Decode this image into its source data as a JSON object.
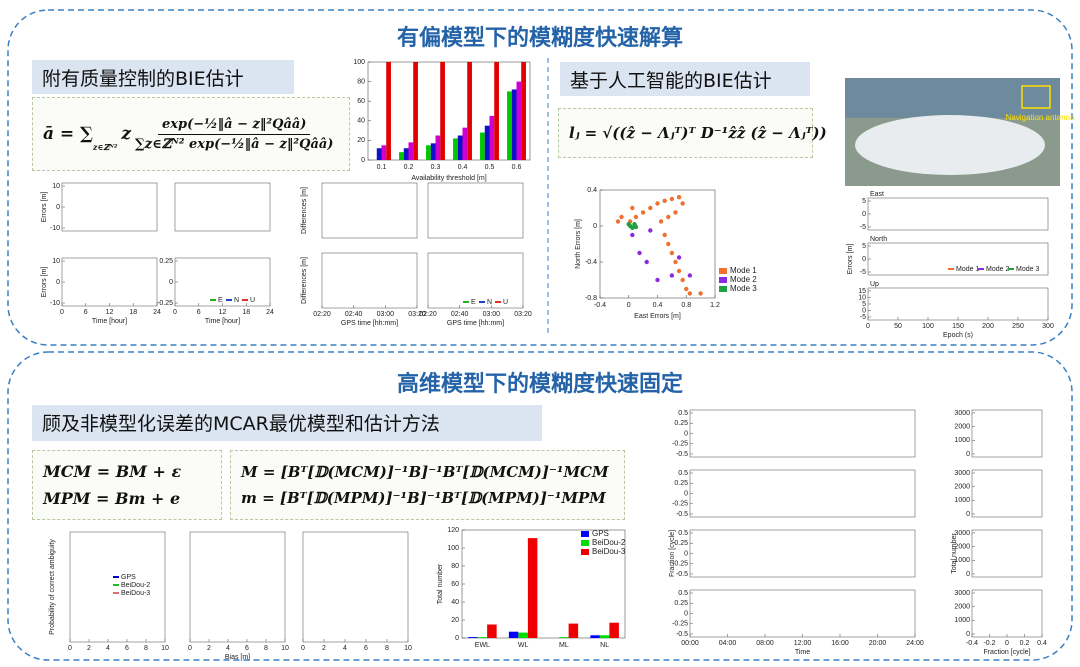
{
  "top": {
    "title": "有偏模型下的模糊度快速解算",
    "left_header": "附有质量控制的BIE估计",
    "left_formula": {
      "lhs": "ā = ∑",
      "sub": "z∈ℤᴺ²",
      "z": "z",
      "num": "exp(−½‖â − z‖²Qââ)",
      "den": "∑z∈ℤᴺ² exp(−½‖â − z‖²Qââ)"
    },
    "right_header": "基于人工智能的BIE估计",
    "right_formula": "lⱼ = √((ẑ − Λⱼᵀ)ᵀ D⁻¹ẑẑ (ẑ − Λⱼᵀ))",
    "photo_label": "Navigation antenna"
  },
  "bottom": {
    "title": "高维模型下的模糊度快速固定",
    "header": "顾及非模型化误差的MCAR最优模型和估计方法",
    "formulas_left": [
      "MCM = BM + ε",
      "MPM = Bm + e"
    ],
    "formulas_right": [
      "M = [Bᵀ[𝔻(MCM)]⁻¹B]⁻¹Bᵀ[𝔻(MCM)]⁻¹MCM",
      "m = [Bᵀ[𝔻(MPM)]⁻¹B]⁻¹Bᵀ[𝔻(MPM)]⁻¹MPM"
    ]
  },
  "chart_data": [
    {
      "type": "bar",
      "xlabel": "Availability threshold [m]",
      "categories": [
        "0.1",
        "0.2",
        "0.3",
        "0.4",
        "0.5",
        "0.6"
      ],
      "series": [
        {
          "color": "#00c800",
          "values": [
            0,
            8,
            15,
            22,
            28,
            70
          ]
        },
        {
          "color": "#1010c8",
          "values": [
            12,
            12,
            17,
            25,
            35,
            72
          ]
        },
        {
          "color": "#d000d0",
          "values": [
            15,
            18,
            25,
            33,
            45,
            80
          ]
        },
        {
          "color": "#e00000",
          "values": [
            100,
            100,
            100,
            100,
            100,
            100
          ]
        }
      ],
      "ylim": [
        0,
        100
      ],
      "yticks": [
        0,
        20,
        40,
        60,
        80,
        100
      ]
    },
    {
      "type": "scatter",
      "xlabel": "East Errors [m]",
      "ylabel": "North Errors [m]",
      "legend": "lower right",
      "xlim": [
        -0.4,
        1.2
      ],
      "xticks": [
        -0.4,
        0,
        0.4,
        0.8,
        1.2
      ],
      "ylim": [
        -0.8,
        0.4
      ],
      "yticks": [
        0.4,
        0,
        -0.4,
        -0.8
      ],
      "series": [
        {
          "name": "Mode 1",
          "color": "#f07030",
          "x": [
            0.02,
            0.1,
            0.2,
            0.3,
            0.4,
            0.5,
            0.6,
            0.7,
            0.75,
            0.65,
            0.55,
            0.45,
            0.5,
            0.55,
            0.6,
            0.65,
            0.7,
            0.75,
            0.8,
            0.85,
            1.0,
            -0.1,
            -0.15,
            0.05
          ],
          "y": [
            0.05,
            0.1,
            0.15,
            0.2,
            0.25,
            0.28,
            0.3,
            0.32,
            0.25,
            0.15,
            0.1,
            0.05,
            -0.1,
            -0.2,
            -0.3,
            -0.4,
            -0.5,
            -0.6,
            -0.7,
            -0.75,
            -0.75,
            0.1,
            0.05,
            0.2
          ]
        },
        {
          "name": "Mode 2",
          "color": "#8a2be2",
          "x": [
            0.05,
            0.3,
            0.25,
            0.6,
            0.4,
            0.15,
            0.7,
            0.85
          ],
          "y": [
            -0.1,
            -0.05,
            -0.4,
            -0.55,
            -0.6,
            -0.3,
            -0.35,
            -0.55
          ]
        },
        {
          "name": "Mode 3",
          "color": "#20a040",
          "x": [
            0.02,
            0.05,
            0.08,
            0.1,
            0.0
          ],
          "y": [
            0.0,
            -0.02,
            0.02,
            -0.01,
            0.02
          ]
        }
      ]
    },
    {
      "type": "bar",
      "ylabel": "Total number",
      "legend": "upper right",
      "categories": [
        "EWL",
        "WL",
        "ML",
        "NL"
      ],
      "series": [
        {
          "name": "GPS",
          "color": "#0000ff",
          "values": [
            1,
            7,
            0,
            3
          ]
        },
        {
          "name": "BeiDou-2",
          "color": "#00dd00",
          "values": [
            1,
            6,
            1,
            3
          ]
        },
        {
          "name": "BeiDou-3",
          "color": "#ee0000",
          "values": [
            15,
            111,
            16,
            17
          ]
        }
      ],
      "ylim": [
        0,
        120
      ],
      "yticks": [
        0,
        20,
        40,
        60,
        80,
        100,
        120
      ]
    }
  ],
  "panels": {
    "errors": [
      {
        "ylabel": "Errors [m]",
        "yticks": [
          10,
          0,
          -10
        ],
        "xticks": []
      },
      {
        "yticks": [],
        "xticks": []
      },
      {
        "ylabel": "Errors [m]",
        "yticks": [
          10,
          0,
          -10
        ],
        "xticks": [
          0,
          6,
          12,
          18,
          24
        ],
        "xlabel": "Time [hour]"
      },
      {
        "yticks": [
          0.25,
          0,
          -0.25
        ],
        "xticks": [
          0,
          6,
          12,
          18,
          24
        ],
        "xlabel": "Time [hour]",
        "legend": [
          "E",
          "N",
          "U"
        ]
      }
    ],
    "differences": [
      {
        "ylabel": "Differences [m]",
        "yticks": [],
        "xticks": []
      },
      {
        "yticks": [],
        "xticks": []
      },
      {
        "ylabel": "Differences [m]",
        "yticks": [],
        "xticks": [
          "02:20",
          "02:40",
          "03:00",
          "03:20"
        ],
        "xlabel": "GPS time [hh:mm]"
      },
      {
        "yticks": [],
        "xticks": [
          "02:20",
          "02:40",
          "03:00",
          "03:20"
        ],
        "xlabel": "GPS time [hh:mm]",
        "legend": [
          "E",
          "N",
          "U"
        ]
      }
    ],
    "modes": [
      {
        "title": "East",
        "yticks": [
          5,
          0,
          -5
        ],
        "xticks": []
      },
      {
        "title": "North",
        "ylabel": "Errors [m]",
        "yticks": [
          5,
          0,
          -5
        ],
        "xticks": [],
        "legend": [
          "Mode 1",
          "Mode 2",
          "Mode 3"
        ]
      },
      {
        "title": "Up",
        "yticks": [
          15,
          10,
          5,
          0,
          -5
        ],
        "xticks": [
          0,
          50,
          100,
          150,
          200,
          250,
          300
        ],
        "xlabel": "Epoch (s)"
      }
    ],
    "probability": [
      {
        "ylabel": "Probability of correct ambiguity",
        "yticks": [],
        "xticks": [
          0,
          2,
          4,
          6,
          8,
          10
        ],
        "legend": [
          "GPS",
          "BeiDou-2",
          "BeiDou-3"
        ]
      },
      {
        "yticks": [],
        "xticks": [
          0,
          2,
          4,
          6,
          8,
          10
        ],
        "xlabel": "Bias [m]"
      },
      {
        "yticks": [],
        "xticks": [
          0,
          2,
          4,
          6,
          8,
          10
        ]
      }
    ],
    "fraction_series": [
      {
        "yticks": [
          0.5,
          0.25,
          0,
          -0.25,
          -0.5
        ],
        "xticks": []
      },
      {
        "yticks": [
          0.5,
          0.25,
          0,
          -0.25,
          -0.5
        ],
        "xticks": []
      },
      {
        "ylabel": "Fraction [cycle]",
        "yticks": [
          0.5,
          0.25,
          0,
          -0.25,
          -0.5
        ],
        "xticks": []
      },
      {
        "yticks": [
          0.5,
          0.25,
          0,
          -0.25,
          -0.5
        ],
        "xticks": [
          "00:00",
          "04:00",
          "08:00",
          "12:00",
          "16:00",
          "20:00",
          "24:00"
        ],
        "xlabel": "Time"
      }
    ],
    "histograms": [
      {
        "yticks": [
          3000,
          2000,
          1000,
          0
        ],
        "xticks": []
      },
      {
        "yticks": [
          3000,
          2000,
          1000,
          0
        ],
        "xticks": []
      },
      {
        "ylabel": "Total number",
        "yticks": [
          3000,
          2000,
          1000,
          0
        ],
        "xticks": []
      },
      {
        "yticks": [
          3000,
          2000,
          1000,
          0
        ],
        "xticks": [
          -0.4,
          -0.2,
          0,
          0.2,
          0.4
        ],
        "xlabel": "Fraction [cycle]"
      }
    ]
  }
}
